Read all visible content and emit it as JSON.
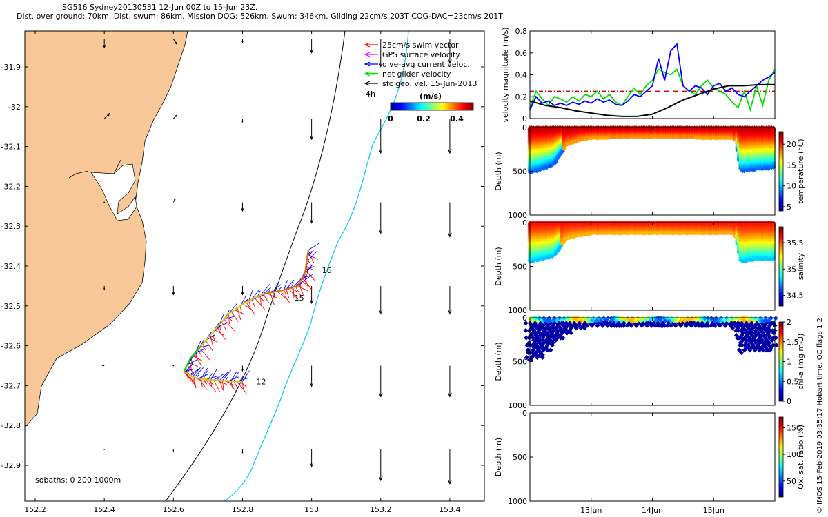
{
  "header": {
    "title_line1": "SG516 Sydney20130531 12-Jun 00Z to 15-Jun 23Z.",
    "title_line2": "Dist. over ground: 70km. Dist. swum: 86km. Mission DOG: 526km. Swum: 346km. Gliding 22cm/s 203T COG-DAC=23cm/s 201T"
  },
  "credit": "© IMOS 15-Feb-2019 03:35:17 Hobart time. QC flags 1  2",
  "colors": {
    "land": "#f8c898",
    "swim_vector": "#ff0000",
    "gps_velocity": "#ff00ff",
    "dive_avg_current": "#0000ff",
    "net_glider": "#00dd00",
    "sfc_geo": "#000000",
    "isobath_200": "#000000",
    "isobath_1000": "#00ccee"
  },
  "chart_data": [
    {
      "type": "map",
      "xlim": [
        152.17,
        153.5
      ],
      "ylim": [
        -32.99,
        -31.81
      ],
      "x_ticks": [
        "152.2",
        "152.4",
        "152.6",
        "152.8",
        "153",
        "153.2",
        "153.4"
      ],
      "x_tick_values": [
        152.2,
        152.4,
        152.6,
        152.8,
        153.0,
        153.2,
        153.4
      ],
      "y_ticks": [
        "-31.9",
        "-32",
        "-32.1",
        "-32.2",
        "-32.3",
        "-32.4",
        "-32.5",
        "-32.6",
        "-32.7",
        "-32.8",
        "-32.9"
      ],
      "y_tick_values": [
        -31.9,
        -32.0,
        -32.1,
        -32.2,
        -32.3,
        -32.4,
        -32.5,
        -32.6,
        -32.7,
        -32.8,
        -32.9
      ],
      "legend": [
        "25cm/s swim vector",
        "GPS surface velocity",
        "dive-avg current veloc.",
        "net glider velocity",
        "sfc geo. vel. 15-Jun-2013"
      ],
      "legend_placement": "top-right",
      "scale_label": "4h",
      "colorbar": {
        "label": "(m/s)",
        "ticks": [
          "0",
          "0.2",
          "0.4"
        ],
        "tick_values": [
          0,
          0.2,
          0.4
        ],
        "range": [
          0,
          0.5
        ]
      },
      "isobaths_label": "isobaths: 0   200  1000m",
      "waypoint_labels": [
        {
          "text": "16",
          "lon": 153.03,
          "lat": -32.41
        },
        {
          "text": "15",
          "lon": 152.95,
          "lat": -32.48
        },
        {
          "text": "12",
          "lon": 152.84,
          "lat": -32.69
        }
      ],
      "track": [
        [
          152.99,
          -32.36
        ],
        [
          152.98,
          -32.42
        ],
        [
          152.96,
          -32.45
        ],
        [
          152.92,
          -32.46
        ],
        [
          152.86,
          -32.47
        ],
        [
          152.81,
          -32.49
        ],
        [
          152.76,
          -32.52
        ],
        [
          152.72,
          -32.56
        ],
        [
          152.68,
          -32.6
        ],
        [
          152.65,
          -32.63
        ],
        [
          152.63,
          -32.665
        ],
        [
          152.66,
          -32.68
        ],
        [
          152.7,
          -32.685
        ],
        [
          152.75,
          -32.688
        ],
        [
          152.8,
          -32.69
        ]
      ],
      "geo_grid_lons": [
        152.4,
        152.6,
        152.8,
        153.0,
        153.2,
        153.4
      ],
      "geo_grid_lats": [
        -31.83,
        -32.03,
        -32.24,
        -32.45,
        -32.65,
        -32.86
      ],
      "geo_vectors": [
        [
          [
            0.0,
            -0.05
          ],
          [
            0.02,
            -0.03
          ],
          [
            0.0,
            -0.02
          ],
          [
            0.0,
            -0.08
          ],
          [
            0.0,
            -0.16
          ],
          [
            0.0,
            -0.14
          ]
        ],
        [
          [
            0.03,
            0.03
          ],
          [
            0.02,
            0.02
          ],
          [
            0.0,
            -0.02
          ],
          [
            0.0,
            -0.12
          ],
          [
            0.0,
            -0.2
          ],
          [
            0.0,
            -0.2
          ]
        ],
        [
          [
            0.0,
            0.0
          ],
          [
            0.01,
            0.02
          ],
          [
            0.0,
            -0.05
          ],
          [
            0.0,
            -0.12
          ],
          [
            0.0,
            -0.18
          ],
          [
            0.0,
            -0.2
          ]
        ],
        [
          [
            0.0,
            -0.02
          ],
          [
            0.0,
            -0.05
          ],
          [
            0.0,
            -0.05
          ],
          [
            0.0,
            -0.1
          ],
          [
            0.0,
            -0.16
          ],
          [
            0.0,
            -0.16
          ]
        ],
        [
          [
            -0.01,
            0.0
          ],
          [
            0.0,
            0.0
          ],
          [
            0.0,
            -0.03
          ],
          [
            0.0,
            -0.12
          ],
          [
            0.0,
            -0.18
          ],
          [
            0.0,
            -0.18
          ]
        ],
        [
          [
            0.0,
            0.0
          ],
          [
            0.0,
            -0.01
          ],
          [
            0.0,
            -0.02
          ],
          [
            0.0,
            -0.1
          ],
          [
            0.0,
            -0.18
          ],
          [
            0.0,
            -0.2
          ]
        ]
      ]
    },
    {
      "type": "line",
      "ylabel": "velocity magnitude (m/s)",
      "ylim": [
        0,
        0.8
      ],
      "y_ticks": [
        "0",
        "0.2",
        "0.4",
        "0.6",
        "0.8"
      ],
      "y_tick_values": [
        0,
        0.2,
        0.4,
        0.6,
        0.8
      ],
      "xlim": [
        12.0,
        16.0
      ],
      "series": [
        {
          "color": "#00dd00",
          "x": [
            12.0,
            12.1,
            12.2,
            12.3,
            12.4,
            12.5,
            12.6,
            12.7,
            12.8,
            12.9,
            13.0,
            13.1,
            13.2,
            13.3,
            13.4,
            13.5,
            13.6,
            13.7,
            13.8,
            13.9,
            14.0,
            14.1,
            14.2,
            14.3,
            14.4,
            14.5,
            14.6,
            14.7,
            14.8,
            14.9,
            15.0,
            15.1,
            15.2,
            15.3,
            15.4,
            15.5,
            15.6,
            15.7,
            15.8,
            15.9,
            16.0
          ],
          "y": [
            0.1,
            0.25,
            0.18,
            0.12,
            0.2,
            0.18,
            0.15,
            0.2,
            0.16,
            0.22,
            0.2,
            0.25,
            0.18,
            0.22,
            0.15,
            0.12,
            0.2,
            0.28,
            0.22,
            0.3,
            0.35,
            0.45,
            0.42,
            0.4,
            0.45,
            0.3,
            0.25,
            0.22,
            0.3,
            0.35,
            0.28,
            0.25,
            0.22,
            0.15,
            0.1,
            0.25,
            0.08,
            0.3,
            0.12,
            0.35,
            0.45
          ]
        },
        {
          "color": "#0000ff",
          "x": [
            12.0,
            12.1,
            12.2,
            12.3,
            12.4,
            12.5,
            12.6,
            12.7,
            12.8,
            12.9,
            13.0,
            13.1,
            13.2,
            13.3,
            13.4,
            13.5,
            13.6,
            13.7,
            13.8,
            13.9,
            14.0,
            14.1,
            14.2,
            14.3,
            14.4,
            14.5,
            14.6,
            14.7,
            14.8,
            14.9,
            15.0,
            15.1,
            15.2,
            15.3,
            15.4,
            15.5,
            15.6,
            15.7,
            15.8,
            15.9,
            16.0
          ],
          "y": [
            0.08,
            0.2,
            0.14,
            0.16,
            0.12,
            0.14,
            0.12,
            0.15,
            0.13,
            0.16,
            0.14,
            0.18,
            0.15,
            0.17,
            0.13,
            0.12,
            0.16,
            0.22,
            0.2,
            0.25,
            0.3,
            0.55,
            0.35,
            0.62,
            0.68,
            0.3,
            0.25,
            0.3,
            0.28,
            0.22,
            0.3,
            0.32,
            0.25,
            0.28,
            0.22,
            0.2,
            0.25,
            0.3,
            0.35,
            0.38,
            0.42
          ]
        },
        {
          "color": "#000000",
          "x": [
            12.0,
            12.25,
            12.5,
            12.75,
            13.0,
            13.25,
            13.5,
            13.75,
            14.0,
            14.25,
            14.5,
            14.75,
            15.0,
            15.25,
            15.5,
            15.75,
            16.0
          ],
          "y": [
            0.16,
            0.12,
            0.1,
            0.07,
            0.05,
            0.03,
            0.02,
            0.02,
            0.04,
            0.1,
            0.17,
            0.22,
            0.27,
            0.3,
            0.3,
            0.31,
            0.31
          ]
        }
      ],
      "reference_line": {
        "value": 0.25,
        "color": "#cc0000"
      }
    },
    {
      "type": "scatter",
      "ylabel": "Depth (m)",
      "colorbar_label": "temperature (°C)",
      "ylim": [
        1000,
        0
      ],
      "y_ticks": [
        "0",
        "500",
        "1000"
      ],
      "y_tick_values": [
        0,
        500,
        1000
      ],
      "colorbar_ticks": [
        "5",
        "10",
        "15",
        "20"
      ],
      "colorbar_tick_values": [
        5,
        10,
        15,
        20
      ],
      "crange": [
        4,
        23
      ],
      "profile_max_depth": [
        [
          12.0,
          520
        ],
        [
          12.2,
          480
        ],
        [
          12.4,
          420
        ],
        [
          12.6,
          200
        ],
        [
          12.8,
          150
        ],
        [
          13.0,
          120
        ],
        [
          14.0,
          110
        ],
        [
          15.0,
          120
        ],
        [
          15.35,
          120
        ],
        [
          15.45,
          500
        ],
        [
          15.7,
          480
        ],
        [
          16.0,
          460
        ]
      ],
      "surface_value": 22,
      "deep_value": 12
    },
    {
      "type": "scatter",
      "ylabel": "Depth (m)",
      "colorbar_label": "salinity",
      "ylim": [
        1000,
        0
      ],
      "y_ticks": [
        "0",
        "500",
        "1000"
      ],
      "y_tick_values": [
        0,
        500,
        1000
      ],
      "colorbar_ticks": [
        "34.5",
        "35",
        "35.5"
      ],
      "colorbar_tick_values": [
        34.5,
        35,
        35.5
      ],
      "crange": [
        34.3,
        35.8
      ],
      "profile_max_depth": [
        [
          12.0,
          450
        ],
        [
          12.2,
          420
        ],
        [
          12.4,
          380
        ],
        [
          12.6,
          180
        ],
        [
          12.8,
          150
        ],
        [
          13.0,
          130
        ],
        [
          14.0,
          120
        ],
        [
          15.0,
          130
        ],
        [
          15.35,
          130
        ],
        [
          15.45,
          450
        ],
        [
          15.7,
          420
        ],
        [
          16.0,
          420
        ]
      ],
      "surface_value": 35.6,
      "deep_value": 35.0
    },
    {
      "type": "scatter",
      "ylabel": "Depth (m)",
      "colorbar_label": "chl-a (mg m-3)",
      "ylim": [
        1000,
        0
      ],
      "y_ticks": [
        "0",
        "500",
        "1000"
      ],
      "y_tick_values": [
        0,
        500,
        1000
      ],
      "colorbar_ticks": [
        "0",
        "0.5",
        "1",
        "1.5",
        "2"
      ],
      "colorbar_tick_values": [
        0,
        0.5,
        1,
        1.5,
        2
      ],
      "crange": [
        0,
        2
      ],
      "profile_max_depth": [
        [
          12.0,
          500
        ],
        [
          12.2,
          450
        ],
        [
          12.4,
          300
        ],
        [
          12.6,
          180
        ],
        [
          12.8,
          120
        ],
        [
          13.0,
          100
        ],
        [
          14.0,
          100
        ],
        [
          15.0,
          110
        ],
        [
          15.35,
          110
        ],
        [
          15.45,
          400
        ],
        [
          15.7,
          380
        ],
        [
          16.0,
          380
        ]
      ],
      "surface_value": 0.9,
      "deep_value": 0.05
    },
    {
      "type": "scatter",
      "ylabel": "Depth (m)",
      "colorbar_label": "Ox. sat. ratio (%)",
      "ylim": [
        1000,
        0
      ],
      "y_ticks": [
        "0",
        "500",
        "1000"
      ],
      "y_tick_values": [
        0,
        500,
        1000
      ],
      "colorbar_ticks": [
        "50",
        "100",
        "150"
      ],
      "colorbar_tick_values": [
        50,
        100,
        150
      ],
      "crange": [
        20,
        170
      ],
      "x_ticks": [
        "13Jun",
        "14Jun",
        "15Jun"
      ],
      "x_tick_values": [
        13,
        14,
        15
      ]
    }
  ]
}
